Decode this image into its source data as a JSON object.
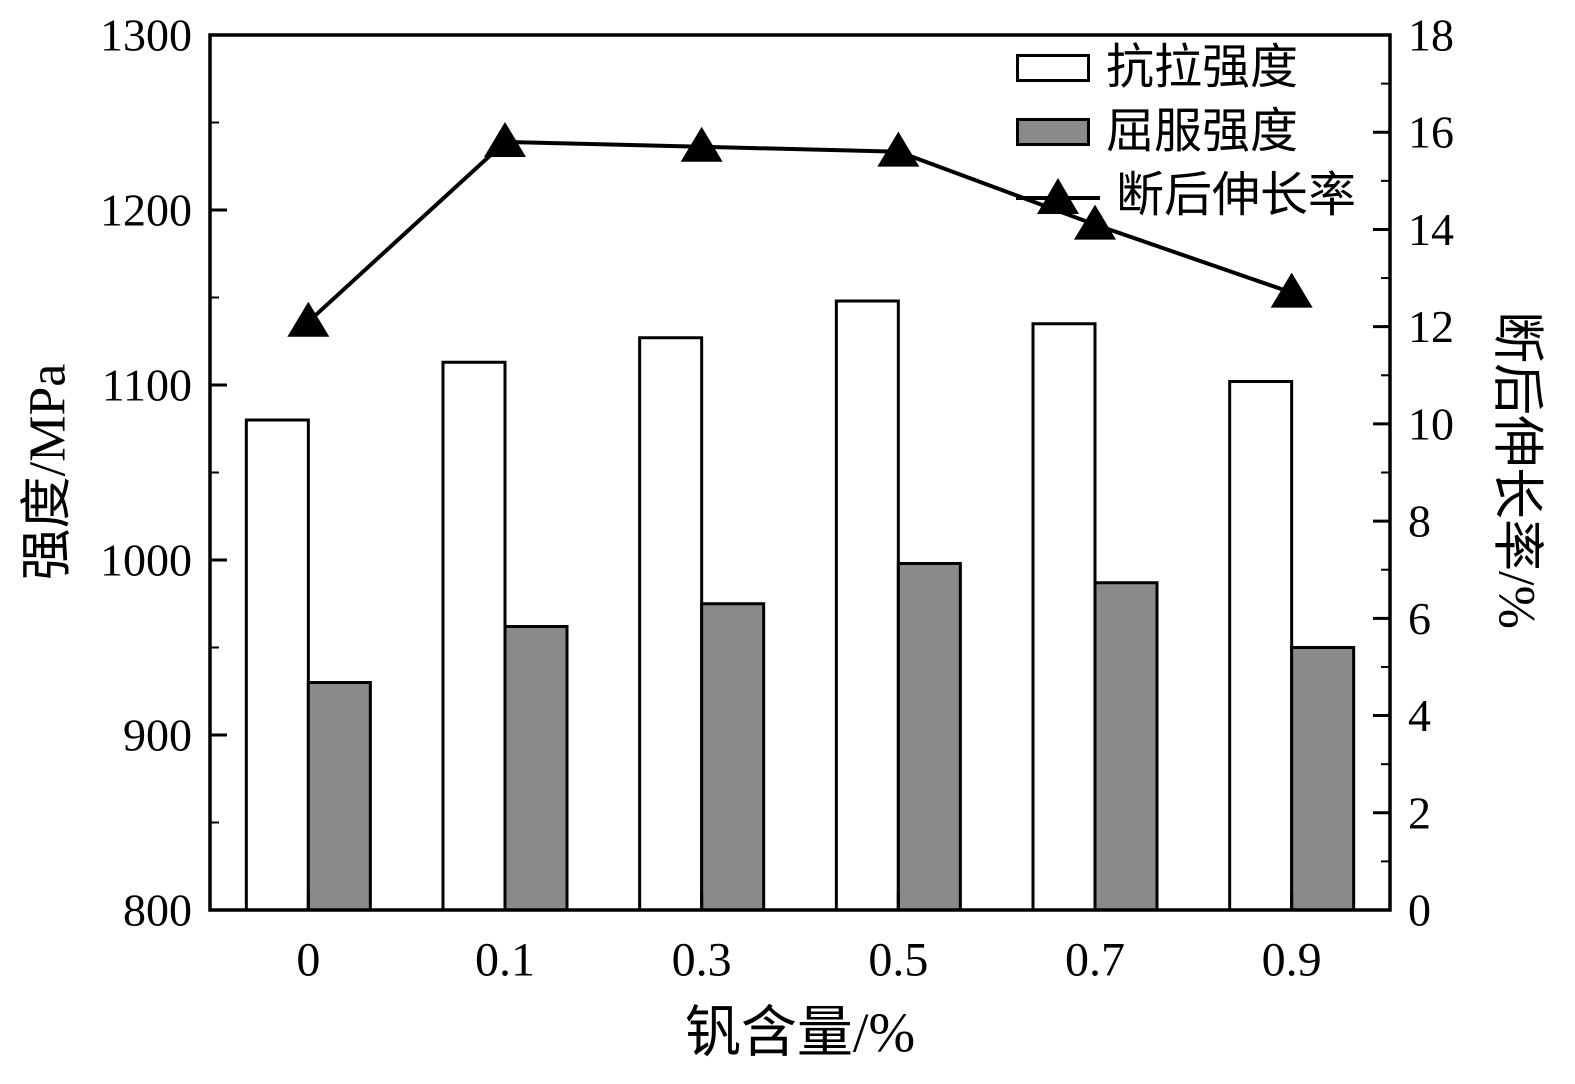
{
  "chart_data": {
    "type": "bar",
    "subtype": "grouped-bars-with-line-overlay",
    "background": "#ffffff",
    "categories": [
      "0",
      "0.1",
      "0.3",
      "0.5",
      "0.7",
      "0.9"
    ],
    "series": [
      {
        "name": "抗拉强度",
        "type": "bar",
        "axis": "left",
        "fill": "#ffffff",
        "stroke": "#000000",
        "values": [
          1080,
          1113,
          1127,
          1148,
          1135,
          1102
        ]
      },
      {
        "name": "屈服强度",
        "type": "bar",
        "axis": "left",
        "fill": "#8a8a8a",
        "stroke": "#000000",
        "values": [
          930,
          962,
          975,
          998,
          987,
          950
        ]
      },
      {
        "name": "断后伸长率",
        "type": "line",
        "axis": "right",
        "color": "#000000",
        "marker": "filled-triangle",
        "values": [
          12.1,
          15.8,
          15.7,
          15.6,
          14.1,
          12.7
        ]
      }
    ],
    "left_axis": {
      "label": "强度/MPa",
      "min": 800,
      "max": 1300,
      "major_step": 100,
      "minor_step": 50,
      "ticks": [
        "800",
        "900",
        "1000",
        "1100",
        "1200",
        "1300"
      ]
    },
    "right_axis": {
      "label": "断后伸长率/%",
      "min": 0,
      "max": 18,
      "major_step": 2,
      "minor_step": 1,
      "ticks": [
        "0",
        "2",
        "4",
        "6",
        "8",
        "10",
        "12",
        "14",
        "16",
        "18"
      ]
    },
    "x_axis": {
      "label": "钒含量/%"
    },
    "legend": {
      "position": "top-right-inside",
      "items": [
        "抗拉强度",
        "屈服强度",
        "断后伸长率"
      ]
    },
    "grid": false,
    "frame": true,
    "colors": {
      "axis": "#000000",
      "bar_gray": "#8a8a8a",
      "bar_white": "#ffffff",
      "line": "#000000",
      "text": "#000000"
    }
  }
}
